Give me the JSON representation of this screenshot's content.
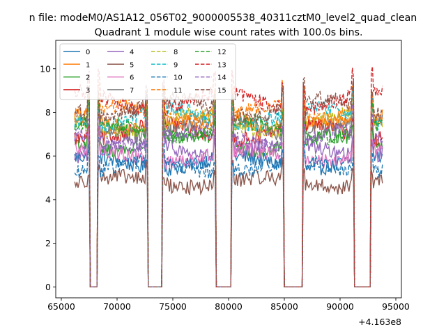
{
  "figure": {
    "suptitle": "n file: modeM0/AS1A12_056T02_9000005538_40311cztM0_level2_quad_clean",
    "offset_label": "+4.163e8"
  },
  "colors": [
    "#1f77b4",
    "#ff7f0e",
    "#2ca02c",
    "#d62728",
    "#9467bd",
    "#8c564b",
    "#e377c2",
    "#7f7f7f",
    "#bcbd22",
    "#17becf",
    "#1f77b4",
    "#ff7f0e",
    "#2ca02c",
    "#d62728",
    "#9467bd",
    "#8c564b"
  ],
  "chart_data": {
    "type": "line",
    "title": "Quadrant 1 module wise count rates with 100.0s bins.",
    "xlabel": "",
    "ylabel": "",
    "x_offset": 416300000,
    "xlim": [
      64500,
      95500
    ],
    "ylim": [
      -0.5,
      11.3
    ],
    "xticks": [
      65000,
      70000,
      75000,
      80000,
      85000,
      90000,
      95000
    ],
    "xtick_labels": [
      "65000",
      "70000",
      "75000",
      "80000",
      "85000",
      "90000",
      "95000"
    ],
    "yticks": [
      0,
      2,
      4,
      6,
      8,
      10
    ],
    "ytick_labels": [
      "0",
      "2",
      "4",
      "6",
      "8",
      "10"
    ],
    "grid": false,
    "legend": {
      "placement": "top-left",
      "columns": 4
    },
    "x_start": 66200,
    "x_end": 93800,
    "bin_width": 100,
    "gaps": [
      [
        67600,
        68200
      ],
      [
        72800,
        74000
      ],
      [
        78900,
        80200
      ],
      [
        85000,
        86600
      ],
      [
        91300,
        92700
      ]
    ],
    "series": [
      {
        "name": "0",
        "style": "solid",
        "level": 5.7
      },
      {
        "name": "1",
        "style": "solid",
        "level": 7.6
      },
      {
        "name": "2",
        "style": "solid",
        "level": 6.6
      },
      {
        "name": "3",
        "style": "solid",
        "level": 7.1
      },
      {
        "name": "4",
        "style": "solid",
        "level": 6.3
      },
      {
        "name": "5",
        "style": "solid",
        "level": 4.8
      },
      {
        "name": "6",
        "style": "solid",
        "level": 6.0
      },
      {
        "name": "7",
        "style": "solid",
        "level": 7.3
      },
      {
        "name": "8",
        "style": "dashed",
        "level": 7.5
      },
      {
        "name": "9",
        "style": "dashed",
        "level": 7.8
      },
      {
        "name": "10",
        "style": "dashed",
        "level": 5.5
      },
      {
        "name": "11",
        "style": "dashed",
        "level": 7.9
      },
      {
        "name": "12",
        "style": "dashed",
        "level": 7.2
      },
      {
        "name": "13",
        "style": "dashed",
        "level": 8.5
      },
      {
        "name": "14",
        "style": "dashed",
        "level": 6.8
      },
      {
        "name": "15",
        "style": "dashed",
        "level": 8.2
      }
    ]
  }
}
